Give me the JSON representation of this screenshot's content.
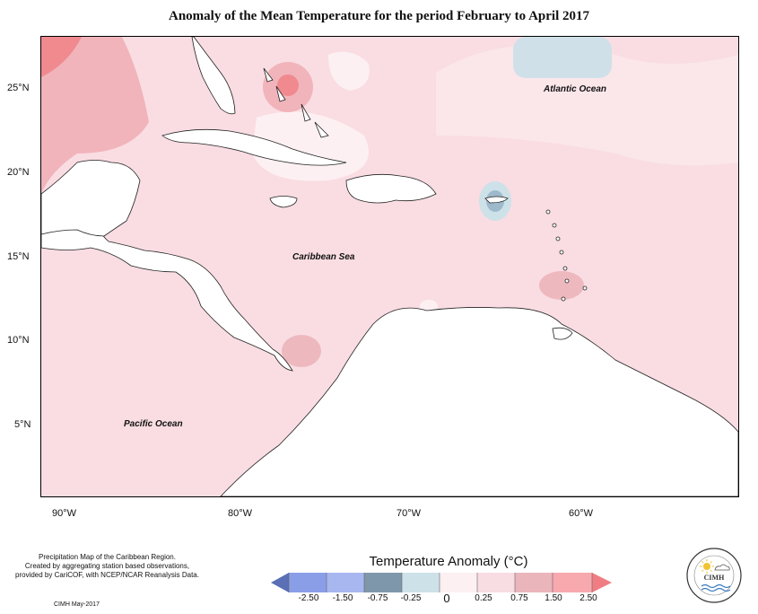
{
  "title": "Anomaly of the Mean Temperature for the period February to April 2017",
  "map": {
    "ocean_labels": {
      "atlantic": "Atlantic Ocean",
      "caribbean": "Caribbean Sea",
      "pacific": "Pacific Ocean"
    },
    "lon_ticks": [
      "90°W",
      "80°W",
      "70°W",
      "60°W"
    ],
    "lat_ticks": [
      "25°N",
      "20°N",
      "15°N",
      "10°N",
      "5°N"
    ],
    "colors": {
      "background_anomaly": "#f9dde2",
      "light_anomaly": "#fdeff1",
      "warm_anomaly": "#eeb8bf",
      "hot_anomaly": "#f08a8f",
      "neutral_cool": "#dbe8ee",
      "cool_anomaly": "#a9c3d3",
      "cold_anomaly": "#7c9cb4",
      "land": "#ffffff"
    }
  },
  "legend": {
    "title": "Temperature Anomaly (°C)",
    "ticks": [
      "-2.50",
      "-1.50",
      "-0.75",
      "-0.25",
      "0",
      "0.25",
      "0.75",
      "1.50",
      "2.50"
    ],
    "class_colors": [
      "#5a6fb5",
      "#8a9ee8",
      "#a9b7f0",
      "#7f97ab",
      "#cde1e8",
      "#fdf0f2",
      "#f8dde2",
      "#eab5bb",
      "#f7a9ae",
      "#f07d83"
    ]
  },
  "credits": {
    "line1": "Precipitation Map of the Caribbean Region.",
    "line2": "Created by aggregating station based observations,",
    "line3": "provided by CariCOF, with NCEP/NCAR Reanalysis Data.",
    "date": "CIMH May-2017"
  },
  "logo": {
    "text": "CIMH"
  }
}
